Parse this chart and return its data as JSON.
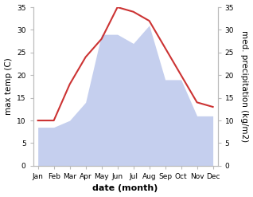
{
  "months": [
    "Jan",
    "Feb",
    "Mar",
    "Apr",
    "May",
    "Jun",
    "Jul",
    "Aug",
    "Sep",
    "Oct",
    "Nov",
    "Dec"
  ],
  "max_temp": [
    10,
    10,
    18,
    24,
    28,
    35,
    34,
    32,
    26,
    20,
    14,
    13
  ],
  "precipitation": [
    8.5,
    8.5,
    10,
    14,
    29,
    29,
    27,
    31,
    19,
    19,
    11,
    11
  ],
  "temp_color": "#cc3333",
  "precip_fill_color": "#c5cfee",
  "temp_ylim": [
    0,
    35
  ],
  "precip_ylim": [
    0,
    35
  ],
  "xlabel": "date (month)",
  "ylabel_left": "max temp (C)",
  "ylabel_right": "med. precipitation (kg/m2)",
  "label_fontsize": 7.5,
  "tick_fontsize": 6.5,
  "background_color": "#ffffff",
  "spine_color": "#bbbbbb"
}
